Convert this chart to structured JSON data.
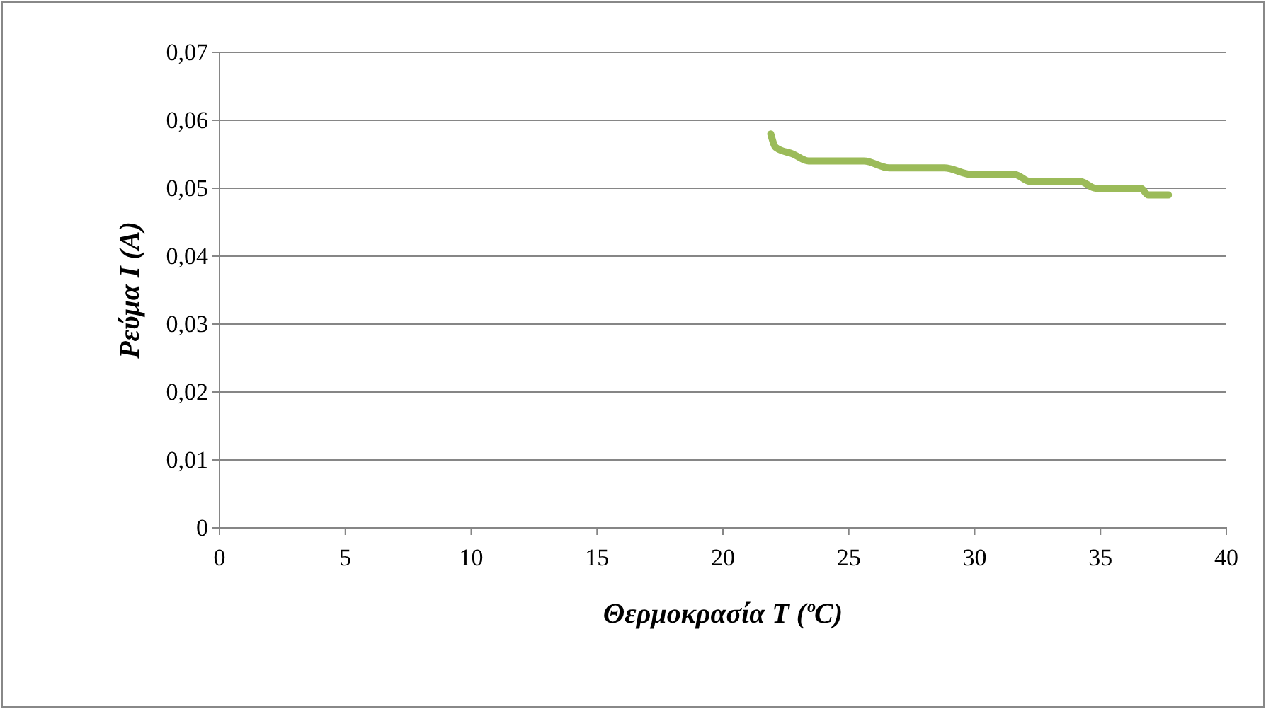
{
  "chart_data": {
    "type": "line",
    "xlabel": "Θερμοκρασία T (ºC)",
    "ylabel": "Ρεύμα I (A)",
    "x": [
      21.9,
      22.1,
      22.8,
      23.4,
      24.1,
      25.6,
      26.6,
      28.2,
      28.8,
      29.9,
      30.3,
      31.6,
      32.2,
      34.2,
      34.8,
      36.6,
      36.9,
      37.7
    ],
    "series": [
      {
        "color": "#9bbb59",
        "values": [
          0.058,
          0.056,
          0.055,
          0.054,
          0.054,
          0.054,
          0.053,
          0.053,
          0.053,
          0.052,
          0.052,
          0.052,
          0.051,
          0.051,
          0.05,
          0.05,
          0.049,
          0.049
        ]
      }
    ],
    "xlim": [
      0,
      40
    ],
    "xticks": [
      0,
      5,
      10,
      15,
      20,
      25,
      30,
      35,
      40
    ],
    "ylim": [
      0,
      0.07
    ],
    "yticks": [
      {
        "value": 0,
        "label": "0"
      },
      {
        "value": 0.01,
        "label": "0,01"
      },
      {
        "value": 0.02,
        "label": "0,02"
      },
      {
        "value": 0.03,
        "label": "0,03"
      },
      {
        "value": 0.04,
        "label": "0,04"
      },
      {
        "value": 0.05,
        "label": "0,05"
      },
      {
        "value": 0.06,
        "label": "0,06"
      },
      {
        "value": 0.07,
        "label": "0,07"
      }
    ],
    "grid": "y",
    "marker": "none",
    "line_style": "solid"
  }
}
